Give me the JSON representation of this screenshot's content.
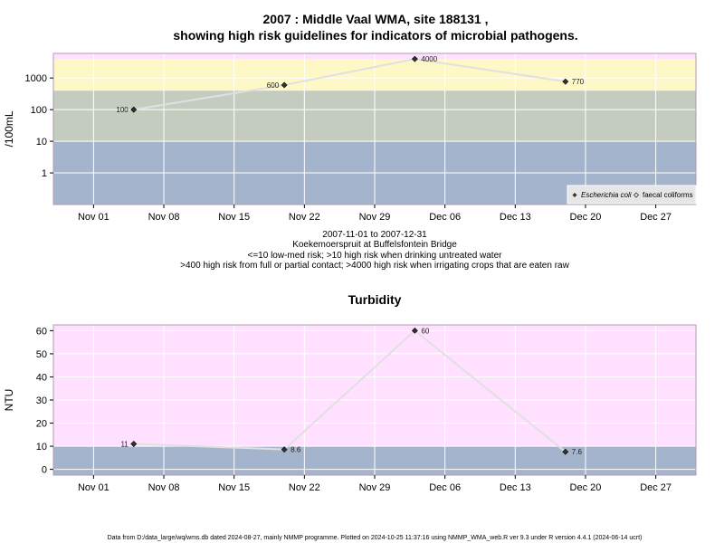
{
  "title_line1": "2007 : Middle Vaal WMA, site 188131 ,",
  "title_line2": "showing high risk guidelines for indicators of microbial pathogens.",
  "caption": [
    "2007-11-01 to 2007-12-31",
    "Koekemoerspruit at Buffelsfontein Bridge",
    "<=10 low-med risk; >10 high risk when drinking untreated water",
    ">400 high risk from full or partial contact; >4000 high risk when irrigating crops that are eaten raw"
  ],
  "footer": "Data from D:/data_large/wq/wms.db dated 2024-08-27, mainly NMMP programme. Plotted on 2024-10-25 11:37:16 using NMMP_WMA_web.R ver 9.3 under R version 4.4.1 (2024-06-14 ucrt)",
  "colors": {
    "band_blue": "#a3b4cc",
    "band_green": "#c4ccc0",
    "band_yellow": "#fef7c6",
    "band_pink": "#ffe1ff",
    "line": "#e0e0e0",
    "grid": "#ffffff",
    "frame": "#b39ab3"
  },
  "chart_data": [
    {
      "type": "line",
      "title": "",
      "xlabel": "",
      "ylabel": "/100mL",
      "yscale": "log",
      "x_range": [
        "2007-10-28",
        "2007-12-31"
      ],
      "y_range": [
        0.1,
        6000
      ],
      "x_ticks": [
        "Nov 01",
        "Nov 08",
        "Nov 15",
        "Nov 22",
        "Nov 29",
        "Dec 06",
        "Dec 13",
        "Dec 20",
        "Dec 27"
      ],
      "y_ticks": [
        "1",
        "10",
        "100",
        "1000"
      ],
      "bands": [
        {
          "from": 0.1,
          "to": 10,
          "color": "band_blue"
        },
        {
          "from": 10,
          "to": 400,
          "color": "band_green"
        },
        {
          "from": 400,
          "to": 4000,
          "color": "band_yellow"
        },
        {
          "from": 4000,
          "to": 6000,
          "color": "band_pink"
        }
      ],
      "series": [
        {
          "name": "Escherichia coli",
          "x": [
            "2007-11-05",
            "2007-11-20",
            "2007-12-03",
            "2007-12-18"
          ],
          "y": [
            100,
            600,
            4000,
            770
          ],
          "labels": [
            "100",
            "600",
            "4000",
            "770"
          ],
          "label_side": [
            "left",
            "left",
            "right",
            "right"
          ]
        }
      ],
      "legend": {
        "position": "bottom-right",
        "entries": [
          {
            "label": "Escherichia coli",
            "marker": "filled",
            "italic": true
          },
          {
            "label": "faecal coliforms",
            "marker": "open",
            "italic": false
          }
        ]
      }
    },
    {
      "type": "line",
      "title": "Turbidity",
      "xlabel": "",
      "ylabel": "NTU",
      "yscale": "linear",
      "x_range": [
        "2007-10-28",
        "2007-12-31"
      ],
      "y_range": [
        -2.5,
        62.5
      ],
      "x_ticks": [
        "Nov 01",
        "Nov 08",
        "Nov 15",
        "Nov 22",
        "Nov 29",
        "Dec 06",
        "Dec 13",
        "Dec 20",
        "Dec 27"
      ],
      "y_ticks": [
        "0",
        "10",
        "20",
        "30",
        "40",
        "50",
        "60"
      ],
      "bands": [
        {
          "from": -2.5,
          "to": 10,
          "color": "band_blue"
        },
        {
          "from": 10,
          "to": 62.5,
          "color": "band_pink"
        }
      ],
      "series": [
        {
          "name": "",
          "x": [
            "2007-11-05",
            "2007-11-20",
            "2007-12-03",
            "2007-12-18"
          ],
          "y": [
            11,
            8.6,
            60,
            7.6
          ],
          "labels": [
            "11",
            "8.6",
            "60",
            "7.6"
          ],
          "label_side": [
            "left",
            "right",
            "right",
            "right"
          ]
        }
      ]
    }
  ]
}
